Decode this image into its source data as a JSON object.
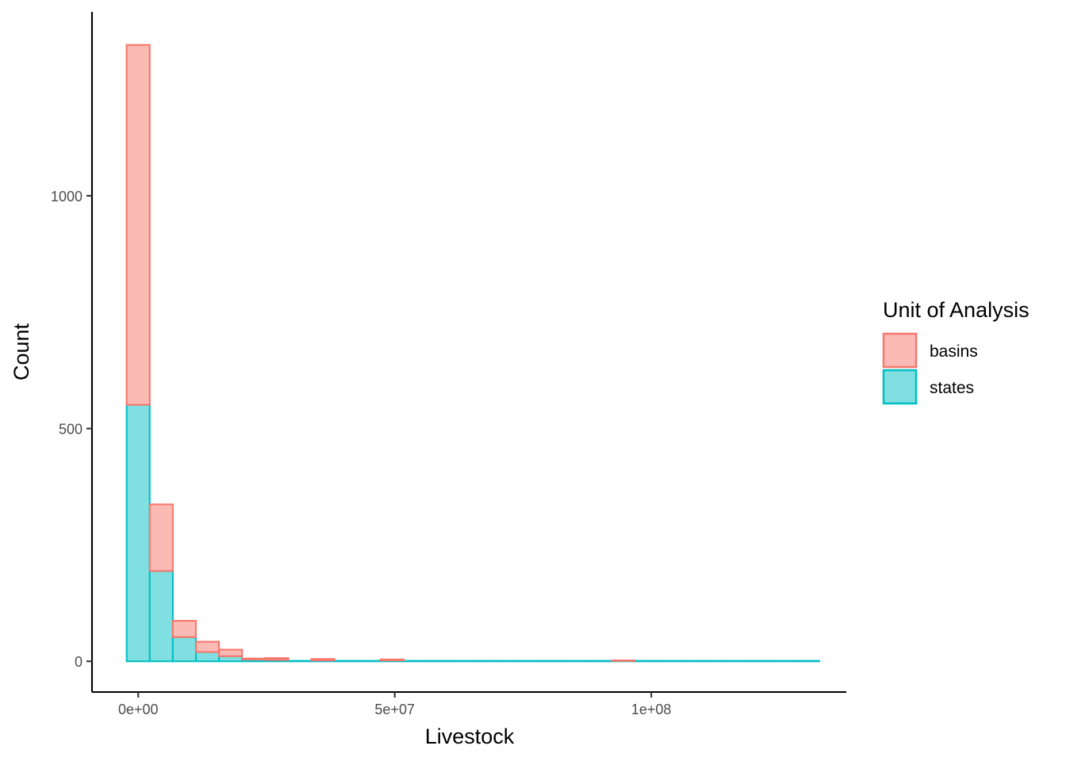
{
  "chart_data": {
    "type": "bar",
    "subtype": "stacked-histogram",
    "xlabel": "Livestock",
    "ylabel": "Count",
    "xlim": [
      -9000000,
      138000000
    ],
    "ylim": [
      -66,
      1395
    ],
    "x_ticks": [
      {
        "value": 0,
        "label": "0e+00"
      },
      {
        "value": 50000000,
        "label": "5e+07"
      },
      {
        "value": 100000000,
        "label": "1e+08"
      }
    ],
    "y_ticks": [
      {
        "value": 0,
        "label": "0"
      },
      {
        "value": 500,
        "label": "500"
      },
      {
        "value": 1000,
        "label": "1000"
      }
    ],
    "bin_width": 4500000,
    "bin_centers": [
      0,
      4500000,
      9000000,
      13500000,
      18000000,
      22500000,
      27000000,
      31500000,
      36000000,
      40500000,
      45000000,
      49500000,
      54000000,
      58500000,
      63000000,
      67500000,
      72000000,
      76500000,
      81000000,
      85500000,
      90000000,
      94500000,
      99000000,
      103500000,
      108000000,
      112500000,
      117000000,
      121500000,
      126000000,
      130500000
    ],
    "series": [
      {
        "name": "states",
        "fill": "#80DFE1",
        "stroke": "#00BFC4",
        "values": [
          551,
          194,
          52,
          20,
          11,
          4,
          3,
          1,
          2,
          1,
          1,
          2,
          1,
          1,
          1,
          1,
          1,
          1,
          1,
          1,
          1,
          1,
          1,
          1,
          1,
          1,
          1,
          1,
          1,
          1
        ]
      },
      {
        "name": "basins",
        "fill": "#FCBAB5",
        "stroke": "#F8766D",
        "values": [
          773,
          143,
          35,
          22,
          14,
          2,
          4,
          0,
          3,
          0,
          0,
          2,
          0,
          0,
          0,
          0,
          0,
          0,
          0,
          0,
          0,
          1,
          0,
          0,
          0,
          0,
          0,
          0,
          0,
          0
        ]
      }
    ],
    "legend": {
      "title": "Unit of Analysis",
      "position": "right",
      "items": [
        {
          "label": "basins",
          "fill": "#FCBAB5",
          "stroke": "#F8766D"
        },
        {
          "label": "states",
          "fill": "#80DFE1",
          "stroke": "#00BFC4"
        }
      ]
    },
    "grid": false
  }
}
